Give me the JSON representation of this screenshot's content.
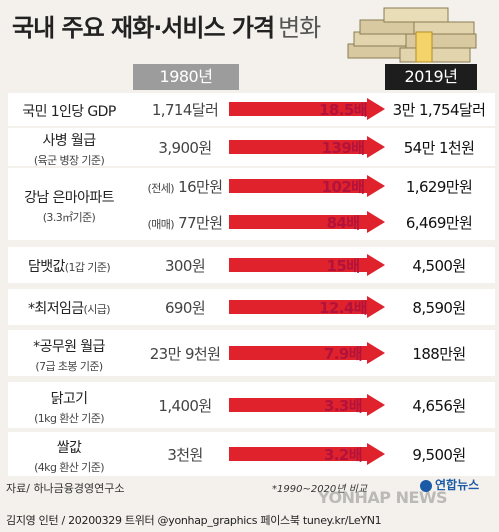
{
  "title": "국내 주요 재화·서비스 가격",
  "title_suffix": "변화",
  "headers": {
    "col_1980": "1980년",
    "col_2019": "2019년"
  },
  "colors": {
    "arrow": "#e0222d",
    "multiplier": "#b3133b",
    "header_1980": "#9c9c9c",
    "header_2019": "#1d1d1d"
  },
  "chart_data": {
    "type": "table",
    "columns": [
      "1980년",
      "배율",
      "2019년"
    ],
    "rows": [
      {
        "label": "국민 1인당 GDP",
        "sub": "",
        "tag": "",
        "v1980": "1,714달러",
        "mult": "18.5배",
        "v2019": "3만 1,754달러",
        "multiplier": 18.5
      },
      {
        "label": "사병 월급",
        "sub": "(육군 병장 기준)",
        "tag": "",
        "v1980": "3,900원",
        "mult": "139배",
        "v2019": "54만 1천원",
        "multiplier": 139
      },
      {
        "label": "강남 은마아파트",
        "sub": "(3.3㎡기준)",
        "tag": "(전세)",
        "v1980": "16만원",
        "mult": "102배",
        "v2019": "1,629만원",
        "multiplier": 102
      },
      {
        "label": "",
        "sub": "",
        "tag": "(매매)",
        "v1980": "77만원",
        "mult": "84배",
        "v2019": "6,469만원",
        "multiplier": 84
      },
      {
        "label": "담뱃값",
        "sub": "(1갑 기준)",
        "tag": "",
        "v1980": "300원",
        "mult": "15배",
        "v2019": "4,500원",
        "multiplier": 15
      },
      {
        "label": "*최저임금",
        "sub": "(시급)",
        "tag": "",
        "v1980": "690원",
        "mult": "12.4배",
        "v2019": "8,590원",
        "multiplier": 12.4
      },
      {
        "label": "*공무원 월급",
        "sub": "(7급 초봉 기준)",
        "tag": "",
        "v1980": "23만 9천원",
        "mult": "7.9배",
        "v2019": "188만원",
        "multiplier": 7.9
      },
      {
        "label": "닭고기",
        "sub": "(1kg 환산 기준)",
        "tag": "",
        "v1980": "1,400원",
        "mult": "3.3배",
        "v2019": "4,656원",
        "multiplier": 3.3
      },
      {
        "label": "쌀값",
        "sub": "(4kg 환산 기준)",
        "tag": "",
        "v1980": "3천원",
        "mult": "3.2배",
        "v2019": "9,500원",
        "multiplier": 3.2
      }
    ]
  },
  "footer": {
    "source": "자료/ 하나금융경영연구소",
    "note": "*1990~2020년 비교",
    "credit": "김지영 인턴 / 20200329 트위터 @yonhap_graphics 페이스북 tuney.kr/LeYN1",
    "watermark": "YONHAP NEWS",
    "logo": "연합뉴스"
  }
}
